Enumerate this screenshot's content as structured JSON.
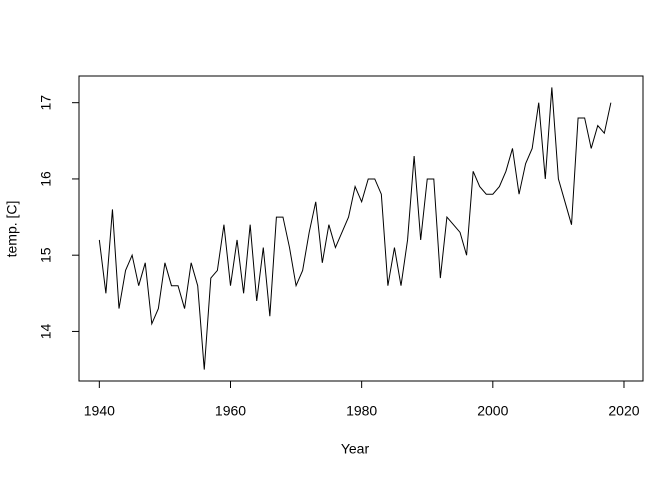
{
  "chart_data": {
    "type": "line",
    "x_label": "Year",
    "y_label": "temp. [C]",
    "x": [
      1940,
      1941,
      1942,
      1943,
      1944,
      1945,
      1946,
      1947,
      1948,
      1949,
      1950,
      1951,
      1952,
      1953,
      1954,
      1955,
      1956,
      1957,
      1958,
      1959,
      1960,
      1961,
      1962,
      1963,
      1964,
      1965,
      1966,
      1967,
      1968,
      1969,
      1970,
      1971,
      1972,
      1973,
      1974,
      1975,
      1976,
      1977,
      1978,
      1979,
      1980,
      1981,
      1982,
      1983,
      1984,
      1985,
      1986,
      1987,
      1988,
      1989,
      1990,
      1991,
      1992,
      1993,
      1994,
      1995,
      1996,
      1997,
      1998,
      1999,
      2000,
      2001,
      2002,
      2003,
      2004,
      2005,
      2006,
      2007,
      2008,
      2009,
      2010,
      2011,
      2012,
      2013,
      2014,
      2015,
      2016,
      2017,
      2018
    ],
    "values": [
      15.2,
      14.5,
      15.6,
      14.3,
      14.8,
      15.0,
      14.6,
      14.9,
      14.1,
      14.3,
      14.9,
      14.6,
      14.6,
      14.3,
      14.9,
      14.6,
      13.5,
      14.7,
      14.8,
      15.4,
      14.6,
      15.2,
      14.5,
      15.4,
      14.4,
      15.1,
      14.2,
      15.5,
      15.5,
      15.1,
      14.6,
      14.8,
      15.3,
      15.7,
      14.9,
      15.4,
      15.1,
      15.3,
      15.5,
      15.9,
      15.7,
      16.0,
      16.0,
      15.8,
      14.6,
      15.1,
      14.6,
      15.2,
      16.3,
      15.2,
      16.0,
      16.0,
      14.7,
      15.5,
      15.4,
      15.3,
      15.0,
      16.1,
      15.9,
      15.8,
      15.8,
      15.9,
      16.1,
      16.4,
      15.8,
      16.2,
      16.4,
      17.0,
      16.0,
      17.2,
      16.0,
      15.7,
      15.4,
      16.8,
      16.8,
      16.4,
      16.7,
      16.6,
      17.0
    ],
    "color": "#000000",
    "xlim": [
      1936.9,
      2022.9
    ],
    "xticks": [
      1940,
      1960,
      1980,
      2000,
      2020
    ],
    "ylim": [
      13.35,
      17.35
    ],
    "yticks": [
      14,
      15,
      16,
      17
    ]
  }
}
